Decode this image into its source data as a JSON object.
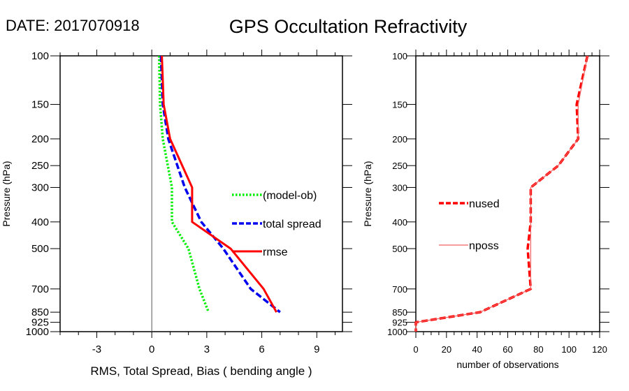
{
  "header": {
    "date_label": "DATE: 2017070918",
    "title": "GPS Occultation Refractivity"
  },
  "chart_data": [
    {
      "type": "line",
      "panel": "left",
      "title": "",
      "xlabel": "RMS, Total Spread, Bias ( bending angle )",
      "ylabel": "Pressure (hPa)",
      "xlim": [
        -5,
        10.4
      ],
      "ylim": [
        1000,
        100
      ],
      "yscale": "log",
      "xticks": [
        -3,
        0,
        3,
        6,
        9
      ],
      "xtick_labels": [
        "-3",
        "0",
        "3",
        "6",
        "9"
      ],
      "yticks": [
        100,
        150,
        200,
        250,
        300,
        400,
        500,
        700,
        850,
        925,
        1000
      ],
      "ytick_labels": [
        "100",
        "150",
        "200",
        "250",
        "300",
        "400",
        "500",
        "700",
        "850",
        "925",
        "1000"
      ],
      "zero_line": 0,
      "grid": false,
      "legend_position": "center-right",
      "series": [
        {
          "name": "(model-ob)",
          "color": "#00ee00",
          "style": "dotted",
          "pressure": [
            100,
            150,
            200,
            300,
            400,
            500,
            700,
            850
          ],
          "values": [
            0.4,
            0.45,
            0.6,
            1.1,
            1.1,
            2.0,
            2.6,
            3.1
          ]
        },
        {
          "name": "total spread",
          "color": "#0000ee",
          "style": "dashed",
          "pressure": [
            100,
            150,
            200,
            300,
            400,
            500,
            700,
            850
          ],
          "values": [
            0.5,
            0.6,
            0.9,
            1.8,
            2.7,
            3.9,
            5.4,
            7.0
          ]
        },
        {
          "name": "rmse",
          "color": "#ff0000",
          "style": "solid",
          "pressure": [
            100,
            150,
            200,
            300,
            400,
            500,
            700,
            850
          ],
          "values": [
            0.55,
            0.65,
            1.0,
            2.2,
            2.2,
            4.3,
            6.1,
            6.8
          ]
        }
      ]
    },
    {
      "type": "line",
      "panel": "right",
      "title": "",
      "xlabel": "number of observations",
      "ylabel": "Pressure (hPa)",
      "xlim": [
        0,
        120
      ],
      "ylim": [
        1000,
        100
      ],
      "yscale": "log",
      "xticks": [
        0,
        20,
        40,
        60,
        80,
        100,
        120
      ],
      "xtick_labels": [
        "0",
        "20",
        "40",
        "60",
        "80",
        "100",
        "120"
      ],
      "yticks": [
        100,
        150,
        200,
        250,
        300,
        400,
        500,
        700,
        850,
        925,
        1000
      ],
      "ytick_labels": [
        "100",
        "150",
        "200",
        "250",
        "300",
        "400",
        "500",
        "700",
        "850",
        "925",
        "1000"
      ],
      "grid": false,
      "legend_position": "center-left",
      "series": [
        {
          "name": "nused",
          "color": "#ff0000",
          "style": "dashed",
          "pressure": [
            100,
            150,
            200,
            250,
            300,
            400,
            500,
            700,
            850,
            925,
            1000
          ],
          "values": [
            112,
            105,
            106,
            93,
            75,
            75,
            73,
            75,
            42,
            0,
            0
          ]
        },
        {
          "name": "nposs",
          "color": "#f06060",
          "style": "solid-thin",
          "pressure": [
            100,
            150,
            200,
            250,
            300,
            400,
            500,
            700,
            850,
            925,
            1000
          ],
          "values": [
            112,
            106,
            106,
            93,
            75,
            75,
            75,
            75,
            42,
            0,
            0
          ]
        }
      ]
    }
  ]
}
